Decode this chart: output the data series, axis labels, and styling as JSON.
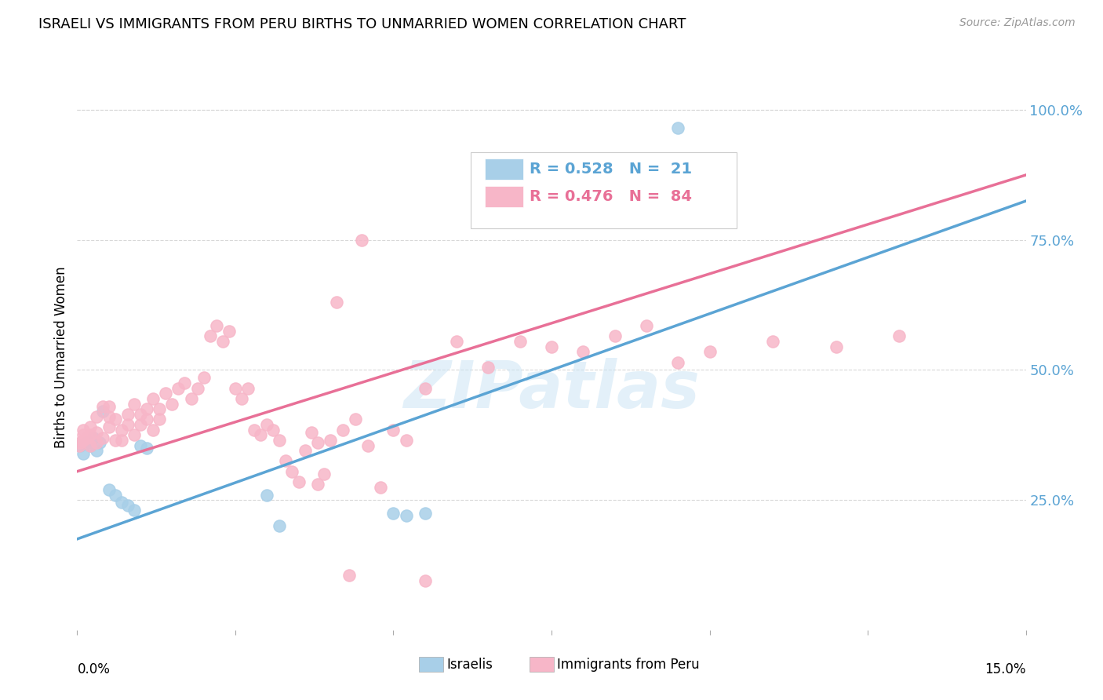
{
  "title": "ISRAELI VS IMMIGRANTS FROM PERU BIRTHS TO UNMARRIED WOMEN CORRELATION CHART",
  "source": "Source: ZipAtlas.com",
  "ylabel": "Births to Unmarried Women",
  "ytick_values": [
    0.25,
    0.5,
    0.75,
    1.0
  ],
  "xmin": 0.0,
  "xmax": 0.15,
  "ymin": 0.0,
  "ymax": 1.05,
  "legend_blue_label": "Israelis",
  "legend_pink_label": "Immigrants from Peru",
  "blue_scatter_x": [
    0.0005,
    0.001,
    0.0015,
    0.002,
    0.0025,
    0.003,
    0.0035,
    0.004,
    0.005,
    0.006,
    0.007,
    0.008,
    0.009,
    0.01,
    0.011,
    0.03,
    0.032,
    0.05,
    0.052,
    0.055,
    0.095
  ],
  "blue_scatter_y": [
    0.355,
    0.34,
    0.36,
    0.355,
    0.37,
    0.345,
    0.36,
    0.42,
    0.27,
    0.26,
    0.245,
    0.24,
    0.23,
    0.355,
    0.35,
    0.26,
    0.2,
    0.225,
    0.22,
    0.225,
    0.965
  ],
  "pink_scatter_x": [
    0.0003,
    0.0005,
    0.001,
    0.001,
    0.001,
    0.0015,
    0.002,
    0.002,
    0.002,
    0.003,
    0.003,
    0.003,
    0.004,
    0.004,
    0.005,
    0.005,
    0.005,
    0.006,
    0.006,
    0.007,
    0.007,
    0.008,
    0.008,
    0.009,
    0.009,
    0.01,
    0.01,
    0.011,
    0.011,
    0.012,
    0.012,
    0.013,
    0.013,
    0.014,
    0.015,
    0.016,
    0.017,
    0.018,
    0.019,
    0.02,
    0.021,
    0.022,
    0.023,
    0.024,
    0.025,
    0.026,
    0.027,
    0.028,
    0.029,
    0.03,
    0.031,
    0.032,
    0.033,
    0.034,
    0.035,
    0.036,
    0.037,
    0.038,
    0.04,
    0.042,
    0.044,
    0.046,
    0.048,
    0.05,
    0.052,
    0.055,
    0.06,
    0.065,
    0.07,
    0.075,
    0.08,
    0.085,
    0.09,
    0.095,
    0.1,
    0.11,
    0.12,
    0.13,
    0.045,
    0.043,
    0.041,
    0.039,
    0.038,
    0.055
  ],
  "pink_scatter_y": [
    0.355,
    0.36,
    0.365,
    0.375,
    0.385,
    0.37,
    0.355,
    0.375,
    0.39,
    0.36,
    0.38,
    0.41,
    0.37,
    0.43,
    0.39,
    0.41,
    0.43,
    0.365,
    0.405,
    0.385,
    0.365,
    0.395,
    0.415,
    0.375,
    0.435,
    0.395,
    0.415,
    0.405,
    0.425,
    0.385,
    0.445,
    0.405,
    0.425,
    0.455,
    0.435,
    0.465,
    0.475,
    0.445,
    0.465,
    0.485,
    0.565,
    0.585,
    0.555,
    0.575,
    0.465,
    0.445,
    0.465,
    0.385,
    0.375,
    0.395,
    0.385,
    0.365,
    0.325,
    0.305,
    0.285,
    0.345,
    0.38,
    0.36,
    0.365,
    0.385,
    0.405,
    0.355,
    0.275,
    0.385,
    0.365,
    0.465,
    0.555,
    0.505,
    0.555,
    0.545,
    0.535,
    0.565,
    0.585,
    0.515,
    0.535,
    0.555,
    0.545,
    0.565,
    0.75,
    0.105,
    0.63,
    0.3,
    0.28,
    0.095
  ],
  "blue_line_x": [
    0.0,
    0.15
  ],
  "blue_line_y": [
    0.175,
    0.825
  ],
  "pink_line_x": [
    0.0,
    0.15
  ],
  "pink_line_y": [
    0.305,
    0.875
  ],
  "blue_color": "#a8cfe8",
  "pink_color": "#f7b6c8",
  "blue_scatter_edge": "#a8cfe8",
  "pink_scatter_edge": "#f7b6c8",
  "blue_line_color": "#5ba4d4",
  "pink_line_color": "#e87097",
  "watermark": "ZIPatlas",
  "background_color": "#ffffff",
  "grid_color": "#d8d8d8"
}
